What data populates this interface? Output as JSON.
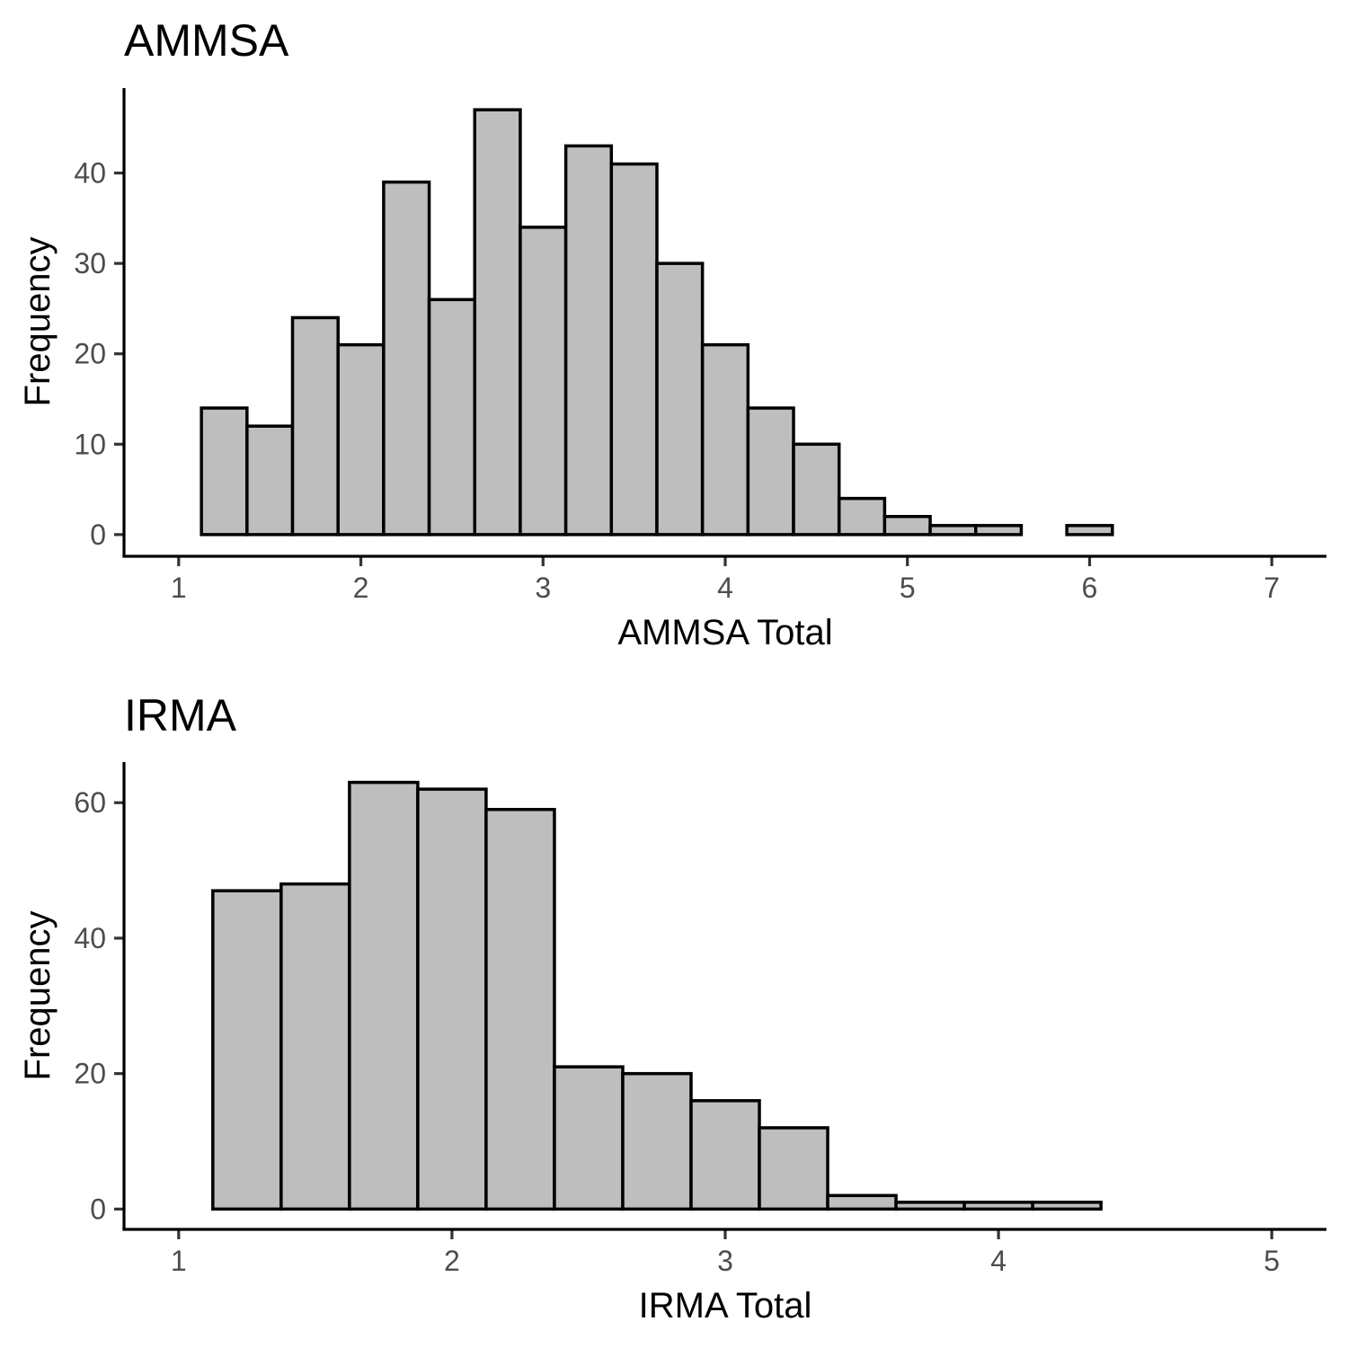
{
  "chart_data": [
    {
      "type": "bar",
      "title": "AMMSA",
      "xlabel": "AMMSA Total",
      "ylabel": "Frequency",
      "bin_width": 0.25,
      "bin_centers": [
        1.25,
        1.5,
        1.75,
        2.0,
        2.25,
        2.5,
        2.75,
        3.0,
        3.25,
        3.5,
        3.75,
        4.0,
        4.25,
        4.5,
        4.75,
        5.0,
        5.25,
        5.5,
        5.75,
        6.0,
        6.25,
        6.5,
        6.75
      ],
      "values": [
        14,
        12,
        24,
        21,
        39,
        26,
        47,
        34,
        43,
        41,
        30,
        21,
        14,
        10,
        4,
        2,
        1,
        1,
        0,
        1,
        0,
        0,
        0
      ],
      "xlim": [
        0.7,
        7.3
      ],
      "ylim": [
        -2.4,
        49.4
      ],
      "xticks": [
        1,
        2,
        3,
        4,
        5,
        6,
        7
      ],
      "xtick_labels": [
        "1",
        "2",
        "3",
        "4",
        "5",
        "6",
        "7"
      ],
      "yticks": [
        0,
        10,
        20,
        30,
        40
      ],
      "ytick_labels": [
        "0",
        "10",
        "20",
        "30",
        "40"
      ],
      "fill": "#bebebe",
      "edge": "#000000",
      "grid": false,
      "legend": "none"
    },
    {
      "type": "bar",
      "title": "IRMA",
      "xlabel": "IRMA Total",
      "ylabel": "Frequency",
      "bin_width": 0.25,
      "bin_centers": [
        1.25,
        1.5,
        1.75,
        2.0,
        2.25,
        2.5,
        2.75,
        3.0,
        3.25,
        3.5,
        3.75,
        4.0,
        4.25,
        4.5,
        4.75
      ],
      "values": [
        47,
        48,
        63,
        62,
        59,
        21,
        20,
        16,
        12,
        2,
        1,
        1,
        1,
        0,
        0
      ],
      "xlim": [
        0.8,
        5.2
      ],
      "ylim": [
        -3.0,
        66.0
      ],
      "xticks": [
        1,
        2,
        3,
        4,
        5
      ],
      "xtick_labels": [
        "1",
        "2",
        "3",
        "4",
        "5"
      ],
      "yticks": [
        0,
        20,
        40,
        60
      ],
      "ytick_labels": [
        "0",
        "20",
        "40",
        "60"
      ],
      "fill": "#bebebe",
      "edge": "#000000",
      "grid": false,
      "legend": "none"
    }
  ]
}
